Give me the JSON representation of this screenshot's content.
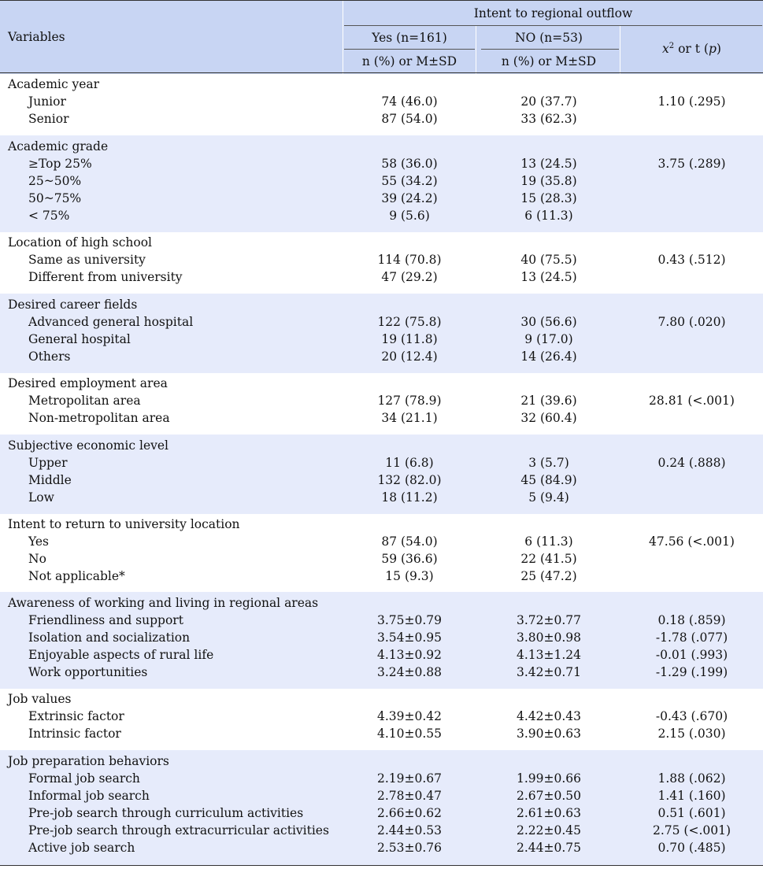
{
  "header": {
    "variables": "Variables",
    "intent": "Intent to regional outflow",
    "yes": "Yes (n=161)",
    "no": "NO (n=53)",
    "sub_yes": "n (%) or M±SD",
    "sub_no": "n (%) or M±SD",
    "stat_prefix": "x",
    "stat_sup": "2",
    "stat_mid": " or t (",
    "stat_p": "p",
    "stat_end": ")"
  },
  "groups": [
    {
      "label": "Academic year",
      "rows": [
        {
          "label": "Junior",
          "yes": "74 (46.0)",
          "no": "20 (37.7)",
          "stat": "1.10 (.295)"
        },
        {
          "label": "Senior",
          "yes": "87 (54.0)",
          "no": "33 (62.3)",
          "stat": ""
        }
      ]
    },
    {
      "label": "Academic grade",
      "rows": [
        {
          "label": "≥Top 25%",
          "yes": "58 (36.0)",
          "no": "13 (24.5)",
          "stat": "3.75 (.289)"
        },
        {
          "label": "25~50%",
          "yes": "55 (34.2)",
          "no": "19 (35.8)",
          "stat": ""
        },
        {
          "label": "50~75%",
          "yes": "39 (24.2)",
          "no": "15 (28.3)",
          "stat": ""
        },
        {
          "label": "< 75%",
          "yes": "9 (5.6)",
          "no": "6 (11.3)",
          "stat": ""
        }
      ]
    },
    {
      "label": "Location of high school",
      "rows": [
        {
          "label": "Same as university",
          "yes": "114 (70.8)",
          "no": "40 (75.5)",
          "stat": "0.43 (.512)"
        },
        {
          "label": "Different from university",
          "yes": "47 (29.2)",
          "no": "13 (24.5)",
          "stat": ""
        }
      ]
    },
    {
      "label": "Desired career fields",
      "rows": [
        {
          "label": "Advanced general hospital",
          "yes": "122 (75.8)",
          "no": "30 (56.6)",
          "stat": "7.80 (.020)"
        },
        {
          "label": "General hospital",
          "yes": "19 (11.8)",
          "no": "9 (17.0)",
          "stat": ""
        },
        {
          "label": "Others",
          "yes": "20 (12.4)",
          "no": "14 (26.4)",
          "stat": ""
        }
      ]
    },
    {
      "label": "Desired employment area",
      "rows": [
        {
          "label": "Metropolitan area",
          "yes": "127 (78.9)",
          "no": "21 (39.6)",
          "stat": "28.81 (<.001)"
        },
        {
          "label": "Non-metropolitan area",
          "yes": "34 (21.1)",
          "no": "32 (60.4)",
          "stat": ""
        }
      ]
    },
    {
      "label": "Subjective economic level",
      "rows": [
        {
          "label": "Upper",
          "yes": "11 (6.8)",
          "no": "3 (5.7)",
          "stat": "0.24 (.888)"
        },
        {
          "label": "Middle",
          "yes": "132 (82.0)",
          "no": "45 (84.9)",
          "stat": ""
        },
        {
          "label": "Low",
          "yes": "18 (11.2)",
          "no": "5 (9.4)",
          "stat": ""
        }
      ]
    },
    {
      "label": "Intent to return to university location",
      "rows": [
        {
          "label": "Yes",
          "yes": "87 (54.0)",
          "no": "6 (11.3)",
          "stat": "47.56 (<.001)"
        },
        {
          "label": "No",
          "yes": "59 (36.6)",
          "no": "22 (41.5)",
          "stat": ""
        },
        {
          "label": "Not applicable*",
          "yes": "15 (9.3)",
          "no": "25 (47.2)",
          "stat": ""
        }
      ]
    },
    {
      "label": "Awareness of working and living in regional areas",
      "rows": [
        {
          "label": "Friendliness and support",
          "yes": "3.75±0.79",
          "no": "3.72±0.77",
          "stat": "0.18 (.859)"
        },
        {
          "label": "Isolation and socialization",
          "yes": "3.54±0.95",
          "no": "3.80±0.98",
          "stat": "-1.78 (.077)"
        },
        {
          "label": "Enjoyable aspects of rural life",
          "yes": "4.13±0.92",
          "no": "4.13±1.24",
          "stat": "-0.01 (.993)"
        },
        {
          "label": "Work opportunities",
          "yes": "3.24±0.88",
          "no": "3.42±0.71",
          "stat": "-1.29 (.199)"
        }
      ]
    },
    {
      "label": "Job values",
      "rows": [
        {
          "label": "Extrinsic factor",
          "yes": "4.39±0.42",
          "no": "4.42±0.43",
          "stat": "-0.43 (.670)"
        },
        {
          "label": "Intrinsic factor",
          "yes": "4.10±0.55",
          "no": "3.90±0.63",
          "stat": "2.15 (.030)"
        }
      ]
    },
    {
      "label": "Job preparation behaviors",
      "rows": [
        {
          "label": "Formal job search",
          "yes": "2.19±0.67",
          "no": "1.99±0.66",
          "stat": "1.88 (.062)"
        },
        {
          "label": "Informal job search",
          "yes": "2.78±0.47",
          "no": "2.67±0.50",
          "stat": "1.41 (.160)"
        },
        {
          "label": "Pre-job search through curriculum activities",
          "yes": "2.66±0.62",
          "no": "2.61±0.63",
          "stat": "0.51 (.601)"
        },
        {
          "label": "Pre-job search through extracurricular activities",
          "yes": "2.44±0.53",
          "no": "2.22±0.45",
          "stat": "2.75 (<.001)"
        },
        {
          "label": "Active job search",
          "yes": "2.53±0.76",
          "no": "2.44±0.75",
          "stat": "0.70 (.485)"
        }
      ]
    }
  ]
}
